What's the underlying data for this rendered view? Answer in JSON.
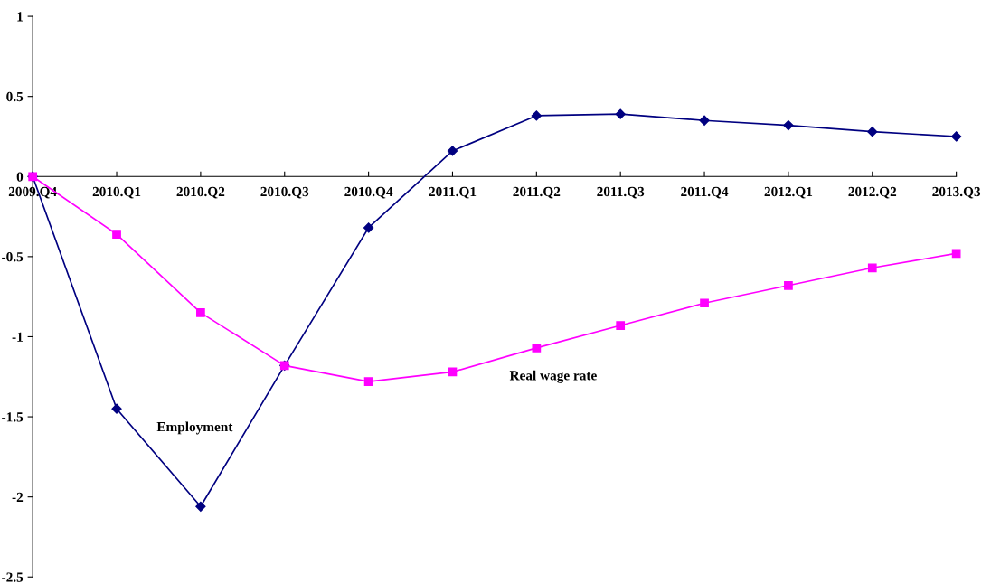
{
  "chart_data": {
    "type": "line",
    "categories": [
      "2009.Q4",
      "2010.Q1",
      "2010.Q2",
      "2010.Q3",
      "2010.Q4",
      "2011.Q1",
      "2011.Q2",
      "2011.Q3",
      "2011.Q4",
      "2012.Q1",
      "2012.Q2",
      "2013.Q3"
    ],
    "series": [
      {
        "name": "Employment",
        "color": "#000080",
        "marker": "diamond",
        "values": [
          0,
          -1.45,
          -2.06,
          -1.18,
          -0.32,
          0.16,
          0.38,
          0.39,
          0.35,
          0.32,
          0.28,
          0.25
        ]
      },
      {
        "name": "Real wage rate",
        "color": "#ff00ff",
        "marker": "square",
        "values": [
          0,
          -0.36,
          -0.85,
          -1.18,
          -1.28,
          -1.22,
          -1.07,
          -0.93,
          -0.79,
          -0.68,
          -0.57,
          -0.48
        ]
      }
    ],
    "ylim": [
      -2.5,
      1
    ],
    "yticks": [
      -2.5,
      -2,
      -1.5,
      -1,
      -0.5,
      0,
      0.5,
      1
    ],
    "grid": false,
    "legend": false,
    "line_style": "solid"
  }
}
